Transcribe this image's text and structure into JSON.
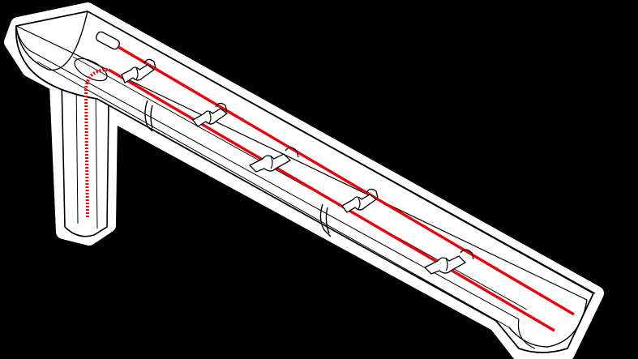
{
  "illustration": {
    "subject": "gutter-with-heating-cable",
    "colors": {
      "background": "#000000",
      "halo": "#ffffff",
      "outline": "#000000",
      "cable": "#e8000b",
      "cable_dashed": "#e8000b",
      "body_fill": "#ffffff"
    },
    "parts": {
      "gutter_trough": "gutter-trough",
      "downpipe": "downpipe",
      "end_cap_left": "gutter-end-cap-left",
      "end_cap_right": "gutter-end-cap-right",
      "hangers": [
        "gutter-hanger-1",
        "gutter-hanger-2"
      ],
      "cable_clips": [
        "cable-clip-1",
        "cable-clip-2",
        "cable-clip-3",
        "cable-clip-4",
        "cable-clip-5"
      ],
      "cable_runs": [
        "heating-cable-upper",
        "heating-cable-lower",
        "heating-cable-downpipe"
      ],
      "cable_end_seal": "cable-end-seal"
    }
  }
}
